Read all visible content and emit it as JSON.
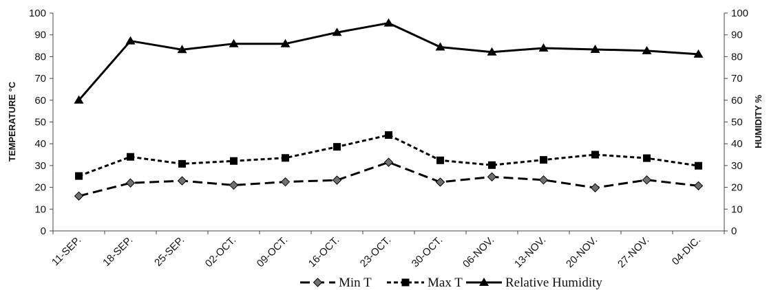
{
  "chart_data": {
    "type": "line",
    "categories": [
      "11-SEP.",
      "18-SEP.",
      "25-SEP.",
      "02-OCT.",
      "09-OCT.",
      "16-OCT.",
      "23-OCT.",
      "30-OCT.",
      "06-NOV.",
      "13-NOV.",
      "20-NOV.",
      "27-NOV.",
      "04-DIC."
    ],
    "series": [
      {
        "name": "Min T",
        "axis": "left",
        "marker": "diamond",
        "dash": "long-dash",
        "values": [
          16,
          22,
          23,
          21,
          22.5,
          23.3,
          31.5,
          22.4,
          24.8,
          23.4,
          19.8,
          23.4,
          20.7
        ]
      },
      {
        "name": "Max T",
        "axis": "left",
        "marker": "square",
        "dash": "short-dash",
        "values": [
          25.2,
          34,
          30.8,
          32.1,
          33.5,
          38.6,
          44,
          32.4,
          30.2,
          32.6,
          35,
          33.4,
          29.9
        ]
      },
      {
        "name": "Relative Humidity",
        "axis": "right",
        "marker": "triangle",
        "dash": "solid",
        "values": [
          60,
          87.2,
          83.2,
          85.9,
          85.9,
          91.1,
          95.4,
          84.4,
          82.1,
          83.9,
          83.3,
          82.7,
          81.1
        ]
      }
    ],
    "ylabel": "TEMPERATURE °C",
    "y2label": "HUMIDITY %",
    "xlabel": "",
    "ylim": [
      0,
      100
    ],
    "y2lim": [
      0,
      100
    ],
    "yticks": [
      0,
      10,
      20,
      30,
      40,
      50,
      60,
      70,
      80,
      90,
      100
    ],
    "y2ticks": [
      0,
      10,
      20,
      30,
      40,
      50,
      60,
      70,
      80,
      90,
      100
    ],
    "grid": false,
    "legend_position": "bottom"
  }
}
